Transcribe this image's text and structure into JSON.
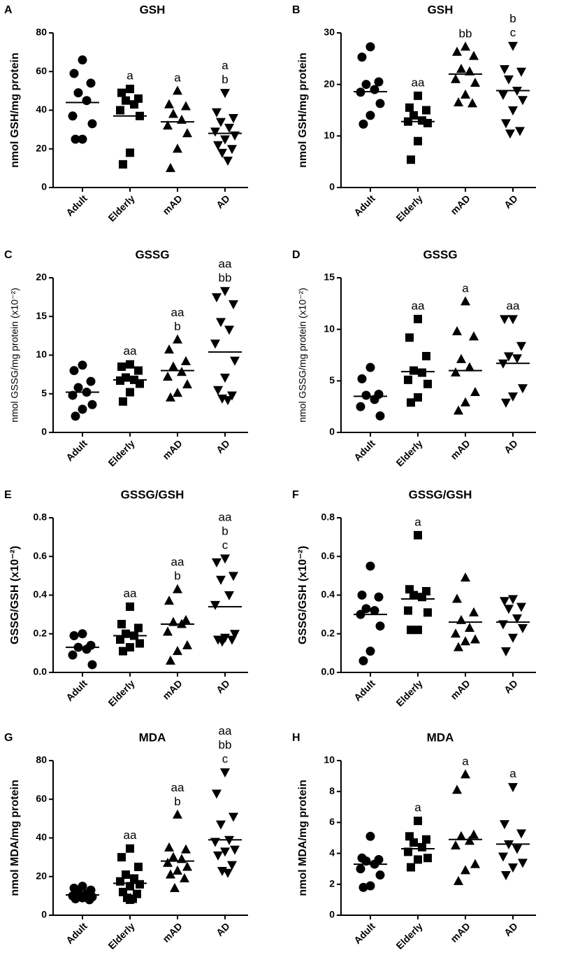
{
  "chart_data": [
    {
      "type": "scatter",
      "panel": "A",
      "title": "GSH",
      "ylabel": "nmol GSH/mg protein",
      "categories": [
        "Adult",
        "Elderly",
        "mAD",
        "AD"
      ],
      "markers": [
        "circle",
        "square",
        "triangle-up",
        "triangle-down"
      ],
      "values": [
        [
          66,
          59,
          54,
          49,
          45,
          37,
          33,
          25,
          25
        ],
        [
          51,
          49,
          46,
          45,
          43,
          40,
          37,
          18,
          12
        ],
        [
          50,
          43,
          42,
          38,
          35,
          32,
          28,
          20,
          10
        ],
        [
          49,
          39,
          36,
          34,
          31,
          29,
          27,
          25,
          22,
          20,
          18,
          14
        ]
      ],
      "means": [
        44,
        37,
        34,
        28
      ],
      "annotations": [
        [],
        [
          "a"
        ],
        [
          "a"
        ],
        [
          "a",
          "b"
        ]
      ],
      "ylim": [
        0,
        80
      ],
      "yticks": [
        0,
        20,
        40,
        60,
        80
      ]
    },
    {
      "type": "scatter",
      "panel": "B",
      "title": "GSH",
      "ylabel": "nmol GSH/mg protein",
      "categories": [
        "Adult",
        "Elderly",
        "mAD",
        "AD"
      ],
      "markers": [
        "circle",
        "square",
        "triangle-up",
        "triangle-down"
      ],
      "values": [
        [
          27.3,
          25.3,
          20.5,
          20,
          19,
          18.5,
          16.3,
          14,
          12.3
        ],
        [
          17.8,
          15.5,
          15,
          14,
          13,
          12.8,
          12.5,
          9,
          5.4
        ],
        [
          27.3,
          26.3,
          25.5,
          23,
          22.5,
          21,
          20.3,
          18,
          16.5,
          16.3
        ],
        [
          27.5,
          23,
          22.5,
          21,
          18.8,
          18,
          17,
          15,
          12.5,
          11,
          10.5
        ]
      ],
      "means": [
        18.6,
        12.8,
        22,
        18.8
      ],
      "annotations": [
        [],
        [
          "aa"
        ],
        [
          "bb"
        ],
        [
          "b",
          "c"
        ]
      ],
      "ylim": [
        0,
        30
      ],
      "yticks": [
        0,
        10,
        20,
        30
      ]
    },
    {
      "type": "scatter",
      "panel": "C",
      "title": "GSSG",
      "ylabel": "nmol GSSG/mg protein (x10⁻²)",
      "categories": [
        "Adult",
        "Elderly",
        "mAD",
        "AD"
      ],
      "markers": [
        "circle",
        "square",
        "triangle-up",
        "triangle-down"
      ],
      "values": [
        [
          8.7,
          8.0,
          6.6,
          5.8,
          5.2,
          4.8,
          3.6,
          3.0,
          2.1
        ],
        [
          8.8,
          8.5,
          8.0,
          7.1,
          6.8,
          6.7,
          6.3,
          5.2,
          4.0
        ],
        [
          12,
          10.7,
          9.2,
          8.5,
          7.8,
          7.2,
          6.2,
          5.1,
          4.5
        ],
        [
          18.3,
          17.5,
          16.6,
          14.3,
          13.3,
          11.5,
          9.3,
          7.1,
          5.5,
          4.8,
          4.4,
          4.2
        ]
      ],
      "means": [
        5.2,
        6.8,
        8,
        10.4
      ],
      "annotations": [
        [],
        [
          "aa"
        ],
        [
          "aa",
          "b"
        ],
        [
          "aa",
          "bb"
        ]
      ],
      "ylim": [
        0,
        20
      ],
      "yticks": [
        0,
        5,
        10,
        15,
        20
      ]
    },
    {
      "type": "scatter",
      "panel": "D",
      "title": "GSSG",
      "ylabel": "nmol GSSG/mg protein (x10⁻²)",
      "categories": [
        "Adult",
        "Elderly",
        "mAD",
        "AD"
      ],
      "markers": [
        "circle",
        "square",
        "triangle-up",
        "triangle-down"
      ],
      "values": [
        [
          6.3,
          5.2,
          3.7,
          3.6,
          3.2,
          2.5,
          1.6
        ],
        [
          11,
          9.2,
          7.4,
          6,
          5.8,
          5.1,
          4.7,
          3.4,
          2.9
        ],
        [
          12.7,
          9.8,
          9.3,
          7.1,
          6.3,
          5.8,
          3.9,
          2.9,
          2.1
        ],
        [
          11,
          11,
          8.4,
          7.4,
          7.2,
          6.7,
          4.3,
          3.5,
          2.9
        ]
      ],
      "means": [
        3.5,
        5.9,
        6,
        6.7
      ],
      "annotations": [
        [],
        [
          "aa"
        ],
        [
          "a"
        ],
        [
          "aa"
        ]
      ],
      "ylim": [
        0,
        15
      ],
      "yticks": [
        0,
        5,
        10,
        15
      ]
    },
    {
      "type": "scatter",
      "panel": "E",
      "title": "GSSG/GSH",
      "ylabel": "GSSG/GSH (x10⁻²)",
      "categories": [
        "Adult",
        "Elderly",
        "mAD",
        "AD"
      ],
      "markers": [
        "circle",
        "square",
        "triangle-up",
        "triangle-down"
      ],
      "values": [
        [
          0.2,
          0.19,
          0.14,
          0.13,
          0.12,
          0.09,
          0.04
        ],
        [
          0.34,
          0.25,
          0.23,
          0.2,
          0.19,
          0.17,
          0.15,
          0.13,
          0.11
        ],
        [
          0.43,
          0.37,
          0.27,
          0.26,
          0.25,
          0.21,
          0.14,
          0.11,
          0.06
        ],
        [
          0.59,
          0.57,
          0.5,
          0.48,
          0.4,
          0.35,
          0.2,
          0.18,
          0.17,
          0.17,
          0.16
        ]
      ],
      "means": [
        0.13,
        0.19,
        0.25,
        0.34
      ],
      "annotations": [
        [],
        [
          "aa"
        ],
        [
          "aa",
          "b"
        ],
        [
          "aa",
          "b",
          "c"
        ]
      ],
      "ylim": [
        0,
        0.8
      ],
      "yticks": [
        {
          "value": 0,
          "label": "0.0"
        },
        0.2,
        0.4,
        0.6,
        0.8
      ]
    },
    {
      "type": "scatter",
      "panel": "F",
      "title": "GSSG/GSH",
      "ylabel": "GSSG/GSH (x10⁻²)",
      "categories": [
        "Adult",
        "Elderly",
        "mAD",
        "AD"
      ],
      "markers": [
        "circle",
        "square",
        "triangle-up",
        "triangle-down"
      ],
      "values": [
        [
          0.55,
          0.4,
          0.39,
          0.33,
          0.32,
          0.3,
          0.24,
          0.11,
          0.06
        ],
        [
          0.71,
          0.43,
          0.42,
          0.4,
          0.39,
          0.32,
          0.31,
          0.22,
          0.22
        ],
        [
          0.49,
          0.38,
          0.31,
          0.27,
          0.23,
          0.2,
          0.17,
          0.16,
          0.13
        ],
        [
          0.38,
          0.37,
          0.34,
          0.33,
          0.28,
          0.25,
          0.23,
          0.18,
          0.11
        ]
      ],
      "means": [
        0.3,
        0.38,
        0.26,
        0.26
      ],
      "annotations": [
        [],
        [
          "a"
        ],
        [],
        []
      ],
      "ylim": [
        0,
        0.8
      ],
      "yticks": [
        {
          "value": 0,
          "label": "0.0"
        },
        0.2,
        0.4,
        0.6,
        0.8
      ]
    },
    {
      "type": "scatter",
      "panel": "G",
      "title": "MDA",
      "ylabel": "nmol MDA/mg protein",
      "categories": [
        "Adult",
        "Elderly",
        "mAD",
        "AD"
      ],
      "markers": [
        "circle",
        "square",
        "triangle-up",
        "triangle-down"
      ],
      "values": [
        [
          15,
          14,
          13,
          12,
          11,
          10,
          9.5,
          9,
          8.5,
          8
        ],
        [
          34.5,
          30,
          25,
          21,
          19,
          17.5,
          16,
          15,
          12,
          11,
          9,
          8.5,
          8
        ],
        [
          52,
          35,
          34,
          30,
          29,
          27,
          25,
          23,
          21,
          19,
          14
        ],
        [
          74,
          63,
          51,
          47,
          39,
          38,
          34,
          33,
          31,
          26,
          23,
          22
        ]
      ],
      "means": [
        10.5,
        16.5,
        28,
        39
      ],
      "annotations": [
        [],
        [
          "aa"
        ],
        [
          "aa",
          "b"
        ],
        [
          "aa",
          "bb",
          "c"
        ]
      ],
      "ylim": [
        0,
        80
      ],
      "yticks": [
        0,
        20,
        40,
        60,
        80
      ]
    },
    {
      "type": "scatter",
      "panel": "H",
      "title": "MDA",
      "ylabel": "nmol MDA/mg protein",
      "categories": [
        "Adult",
        "Elderly",
        "mAD",
        "AD"
      ],
      "markers": [
        "circle",
        "square",
        "triangle-up",
        "triangle-down"
      ],
      "values": [
        [
          5.1,
          3.7,
          3.6,
          3.5,
          3.3,
          3,
          2.6,
          1.9,
          1.8
        ],
        [
          6.1,
          5.1,
          4.9,
          4.7,
          4.4,
          4.1,
          3.7,
          3.6,
          3.1
        ],
        [
          9.1,
          8.1,
          5.2,
          5.1,
          4.8,
          4.5,
          3.3,
          2.9,
          2.2
        ],
        [
          8.3,
          5.9,
          5.3,
          4.6,
          4.3,
          3.8,
          3.4,
          3.1,
          2.6
        ]
      ],
      "means": [
        3.3,
        4.3,
        4.9,
        4.6
      ],
      "annotations": [
        [],
        [
          "a"
        ],
        [
          "a"
        ],
        [
          "a"
        ]
      ],
      "ylim": [
        0,
        10
      ],
      "yticks": [
        0,
        2,
        4,
        6,
        8,
        10
      ]
    }
  ]
}
